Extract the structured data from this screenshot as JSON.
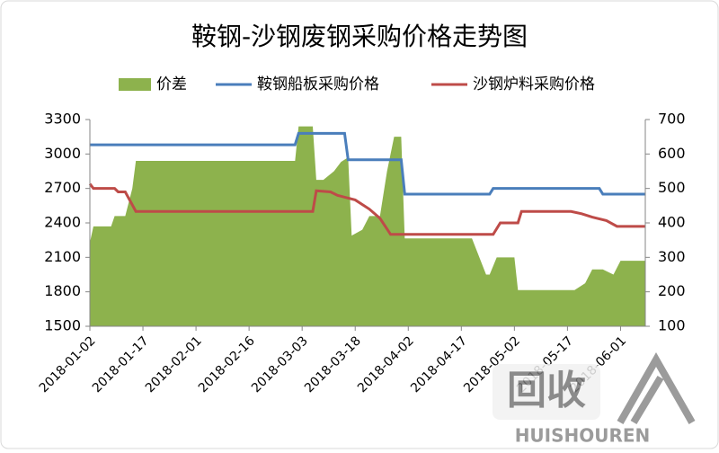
{
  "chart_data": {
    "type": "line-area",
    "title": "鞍钢-沙钢废钢采购价格走势图",
    "xlim": [
      "2018-01-02",
      "2018-06-08"
    ],
    "xticks": [
      "2018-01-02",
      "2018-01-17",
      "2018-02-01",
      "2018-02-16",
      "2018-03-03",
      "2018-03-18",
      "2018-04-02",
      "2018-04-17",
      "2018-05-02",
      "2018-05-17",
      "2018-06-01"
    ],
    "ylim": [
      1500,
      3300
    ],
    "yticks": [
      1500,
      1800,
      2100,
      2400,
      2700,
      3000,
      3300
    ],
    "y2lim": [
      100,
      700
    ],
    "y2ticks": [
      100,
      200,
      300,
      400,
      500,
      600,
      700
    ],
    "legend": "top",
    "series": [
      {
        "name": "价差",
        "color": "#8db24d",
        "kind": "area",
        "axis": "y2",
        "x": [
          "2018-01-02",
          "2018-01-03",
          "2018-01-08",
          "2018-01-09",
          "2018-01-12",
          "2018-01-14",
          "2018-01-15",
          "2018-03-01",
          "2018-03-02",
          "2018-03-06",
          "2018-03-07",
          "2018-03-09",
          "2018-03-12",
          "2018-03-14",
          "2018-03-16",
          "2018-03-17",
          "2018-03-20",
          "2018-03-22",
          "2018-03-25",
          "2018-03-27",
          "2018-03-29",
          "2018-03-31",
          "2018-04-01",
          "2018-04-20",
          "2018-04-24",
          "2018-04-25",
          "2018-04-27",
          "2018-05-02",
          "2018-05-03",
          "2018-05-19",
          "2018-05-22",
          "2018-05-24",
          "2018-05-27",
          "2018-05-30",
          "2018-06-01",
          "2018-06-08"
        ],
        "values": [
          343,
          390,
          390,
          420,
          420,
          500,
          580,
          580,
          680,
          680,
          525,
          525,
          550,
          577,
          590,
          363,
          380,
          420,
          420,
          550,
          650,
          650,
          355,
          355,
          250,
          250,
          300,
          300,
          205,
          205,
          225,
          265,
          265,
          250,
          290,
          290
        ]
      },
      {
        "name": "鞍钢船板采购价格",
        "color": "#4a7ebb",
        "kind": "line",
        "x": [
          "2018-01-02",
          "2018-03-01",
          "2018-03-02",
          "2018-03-15",
          "2018-03-16",
          "2018-03-31",
          "2018-04-01",
          "2018-04-25",
          "2018-04-26",
          "2018-05-26",
          "2018-05-27",
          "2018-06-08"
        ],
        "values": [
          3080,
          3080,
          3180,
          3180,
          2950,
          2950,
          2650,
          2650,
          2700,
          2700,
          2650,
          2650
        ]
      },
      {
        "name": "沙钢炉料采购价格",
        "color": "#be4b48",
        "kind": "line",
        "x": [
          "2018-01-02",
          "2018-01-03",
          "2018-01-09",
          "2018-01-10",
          "2018-01-12",
          "2018-01-15",
          "2018-03-06",
          "2018-03-07",
          "2018-03-11",
          "2018-03-13",
          "2018-03-18",
          "2018-03-22",
          "2018-03-25",
          "2018-03-28",
          "2018-04-26",
          "2018-04-28",
          "2018-05-03",
          "2018-05-04",
          "2018-05-18",
          "2018-05-21",
          "2018-05-24",
          "2018-05-28",
          "2018-05-31",
          "2018-06-08"
        ],
        "values": [
          2740,
          2700,
          2700,
          2670,
          2670,
          2500,
          2500,
          2680,
          2670,
          2640,
          2600,
          2520,
          2440,
          2300,
          2300,
          2400,
          2400,
          2500,
          2500,
          2480,
          2450,
          2420,
          2370,
          2370
        ]
      }
    ]
  },
  "watermark": {
    "logo": "回收",
    "text": "HUISHOUREN"
  }
}
